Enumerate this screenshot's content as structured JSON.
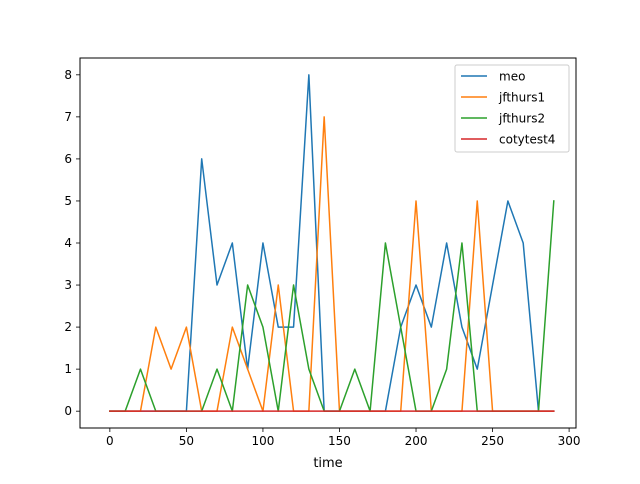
{
  "chart_data": {
    "type": "line",
    "title": "",
    "xlabel": "time",
    "ylabel": "",
    "xlim": [
      -19.5,
      304.5
    ],
    "ylim": [
      -0.4,
      8.4
    ],
    "x_ticks": [
      0,
      50,
      100,
      150,
      200,
      250,
      300
    ],
    "y_ticks": [
      0,
      1,
      2,
      3,
      4,
      5,
      6,
      7,
      8
    ],
    "x_tick_labels": [
      "0",
      "50",
      "100",
      "150",
      "200",
      "250",
      "300"
    ],
    "y_tick_labels": [
      "0",
      "1",
      "2",
      "3",
      "4",
      "5",
      "6",
      "7",
      "8"
    ],
    "grid": false,
    "legend_position": "top-right",
    "x": [
      0,
      10,
      20,
      30,
      40,
      50,
      60,
      70,
      80,
      90,
      100,
      110,
      120,
      130,
      140,
      150,
      160,
      170,
      180,
      190,
      200,
      210,
      220,
      230,
      240,
      250,
      260,
      270,
      280,
      290
    ],
    "series": [
      {
        "name": "meo",
        "color": "#1f77b4",
        "values": [
          0,
          0,
          0,
          0,
          0,
          0,
          6,
          3,
          4,
          1,
          4,
          2,
          2,
          8,
          0,
          0,
          0,
          0,
          0,
          2,
          3,
          2,
          4,
          2,
          1,
          3,
          5,
          4,
          0,
          0
        ]
      },
      {
        "name": "jfthurs1",
        "color": "#ff7f0e",
        "values": [
          0,
          0,
          0,
          2,
          1,
          2,
          0,
          0,
          2,
          1,
          0,
          3,
          0,
          0,
          7,
          0,
          0,
          0,
          0,
          0,
          5,
          0,
          0,
          0,
          5,
          0,
          0,
          0,
          0,
          0
        ]
      },
      {
        "name": "jfthurs2",
        "color": "#2ca02c",
        "values": [
          0,
          0,
          1,
          0,
          0,
          0,
          0,
          1,
          0,
          3,
          2,
          0,
          3,
          1,
          0,
          0,
          1,
          0,
          4,
          2,
          0,
          0,
          1,
          4,
          0,
          0,
          0,
          0,
          0,
          5
        ]
      },
      {
        "name": "cotytest4",
        "color": "#d62728",
        "values": [
          0,
          0,
          0,
          0,
          0,
          0,
          0,
          0,
          0,
          0,
          0,
          0,
          0,
          0,
          0,
          0,
          0,
          0,
          0,
          0,
          0,
          0,
          0,
          0,
          0,
          0,
          0,
          0,
          0,
          0
        ]
      }
    ]
  }
}
